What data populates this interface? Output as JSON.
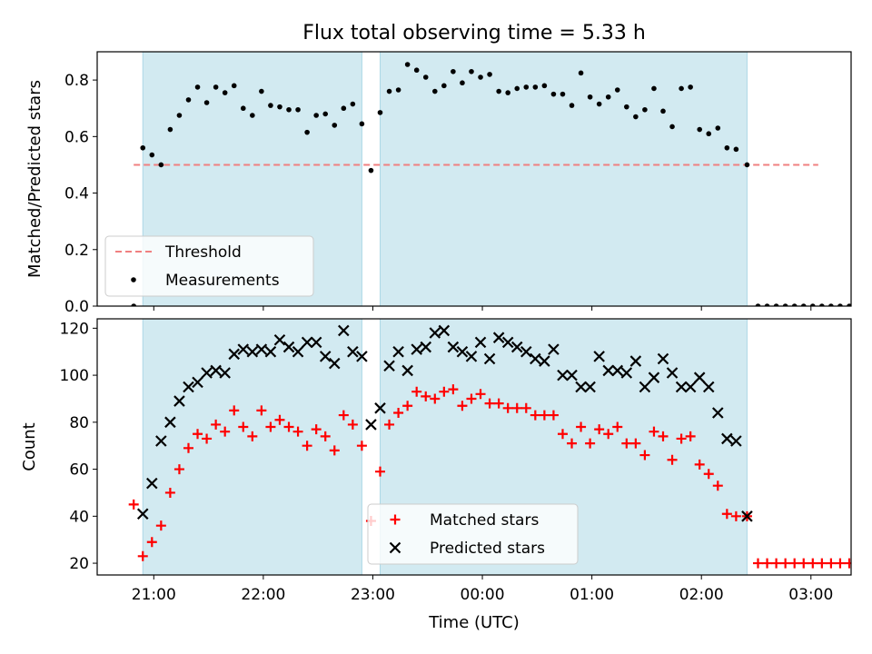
{
  "figure": {
    "title": "Flux total observing time = 5.33 h",
    "xlabel": "Time (UTC)"
  },
  "colors": {
    "band": "#add8e6",
    "threshold": "#f08080",
    "measurements": "#000000",
    "matched": "#ff0000",
    "predicted": "#000000"
  },
  "chart_data": [
    {
      "type": "scatter",
      "panel": "top",
      "ylabel": "Matched/Predicted stars",
      "xlim": [
        "20:29",
        "03:22"
      ],
      "ylim": [
        0,
        0.9
      ],
      "yticks": [
        0.0,
        0.2,
        0.4,
        0.6,
        0.8
      ],
      "ytick_labels": [
        "0.0",
        "0.2",
        "0.4",
        "0.6",
        "0.8"
      ],
      "xticks": [
        "21:00",
        "22:00",
        "23:00",
        "00:00",
        "01:00",
        "02:00",
        "03:00"
      ],
      "grid": false,
      "legend_position": "lower-left",
      "shaded_intervals": [
        [
          "20:54",
          "22:54"
        ],
        [
          "23:04",
          "02:25"
        ]
      ],
      "threshold": {
        "name": "Threshold",
        "value": 0.5,
        "x_range": [
          "20:49",
          "03:04"
        ],
        "style": "dashed"
      },
      "series": [
        {
          "name": "Measurements",
          "marker": "dot",
          "points": [
            [
              "20:49",
              0.0
            ],
            [
              "20:54",
              0.56
            ],
            [
              "20:59",
              0.535
            ],
            [
              "21:04",
              0.5
            ],
            [
              "21:09",
              0.625
            ],
            [
              "21:14",
              0.675
            ],
            [
              "21:19",
              0.73
            ],
            [
              "21:24",
              0.775
            ],
            [
              "21:29",
              0.72
            ],
            [
              "21:34",
              0.775
            ],
            [
              "21:39",
              0.755
            ],
            [
              "21:44",
              0.78
            ],
            [
              "21:49",
              0.7
            ],
            [
              "21:54",
              0.675
            ],
            [
              "21:59",
              0.76
            ],
            [
              "22:04",
              0.71
            ],
            [
              "22:09",
              0.705
            ],
            [
              "22:14",
              0.695
            ],
            [
              "22:19",
              0.695
            ],
            [
              "22:24",
              0.615
            ],
            [
              "22:29",
              0.675
            ],
            [
              "22:34",
              0.68
            ],
            [
              "22:39",
              0.64
            ],
            [
              "22:44",
              0.7
            ],
            [
              "22:49",
              0.715
            ],
            [
              "22:54",
              0.645
            ],
            [
              "22:59",
              0.48
            ],
            [
              "23:04",
              0.685
            ],
            [
              "23:09",
              0.76
            ],
            [
              "23:14",
              0.765
            ],
            [
              "23:19",
              0.855
            ],
            [
              "23:24",
              0.835
            ],
            [
              "23:29",
              0.81
            ],
            [
              "23:34",
              0.76
            ],
            [
              "23:39",
              0.78
            ],
            [
              "23:44",
              0.83
            ],
            [
              "23:49",
              0.79
            ],
            [
              "23:54",
              0.83
            ],
            [
              "23:59",
              0.81
            ],
            [
              "00:04",
              0.82
            ],
            [
              "00:09",
              0.76
            ],
            [
              "00:14",
              0.755
            ],
            [
              "00:19",
              0.77
            ],
            [
              "00:24",
              0.775
            ],
            [
              "00:29",
              0.775
            ],
            [
              "00:34",
              0.78
            ],
            [
              "00:39",
              0.75
            ],
            [
              "00:44",
              0.75
            ],
            [
              "00:49",
              0.71
            ],
            [
              "00:54",
              0.825
            ],
            [
              "00:59",
              0.74
            ],
            [
              "01:04",
              0.715
            ],
            [
              "01:09",
              0.74
            ],
            [
              "01:14",
              0.765
            ],
            [
              "01:19",
              0.705
            ],
            [
              "01:24",
              0.67
            ],
            [
              "01:29",
              0.695
            ],
            [
              "01:34",
              0.77
            ],
            [
              "01:39",
              0.69
            ],
            [
              "01:44",
              0.635
            ],
            [
              "01:49",
              0.77
            ],
            [
              "01:54",
              0.775
            ],
            [
              "01:59",
              0.625
            ],
            [
              "02:04",
              0.61
            ],
            [
              "02:09",
              0.63
            ],
            [
              "02:14",
              0.56
            ],
            [
              "02:19",
              0.555
            ],
            [
              "02:25",
              0.5
            ],
            [
              "02:31",
              0.0
            ],
            [
              "02:36",
              0.0
            ],
            [
              "02:41",
              0.0
            ],
            [
              "02:46",
              0.0
            ],
            [
              "02:51",
              0.0
            ],
            [
              "02:56",
              0.0
            ],
            [
              "03:01",
              0.0
            ],
            [
              "03:06",
              0.0
            ],
            [
              "03:11",
              0.0
            ],
            [
              "03:16",
              0.0
            ],
            [
              "03:21",
              0.0
            ]
          ]
        }
      ]
    },
    {
      "type": "scatter",
      "panel": "bottom",
      "ylabel": "Count",
      "xlim": [
        "20:29",
        "03:22"
      ],
      "ylim": [
        15,
        124
      ],
      "yticks": [
        20,
        40,
        60,
        80,
        100,
        120
      ],
      "ytick_labels": [
        "20",
        "40",
        "60",
        "80",
        "100",
        "120"
      ],
      "xticks": [
        "21:00",
        "22:00",
        "23:00",
        "00:00",
        "01:00",
        "02:00",
        "03:00"
      ],
      "xtick_labels": [
        "21:00",
        "22:00",
        "23:00",
        "00:00",
        "01:00",
        "02:00",
        "03:00"
      ],
      "grid": false,
      "legend_position": "lower-center",
      "shaded_intervals": [
        [
          "20:54",
          "22:54"
        ],
        [
          "23:04",
          "02:25"
        ]
      ],
      "series": [
        {
          "name": "Matched stars",
          "marker": "plus",
          "points": [
            [
              "20:49",
              45
            ],
            [
              "20:54",
              23
            ],
            [
              "20:59",
              29
            ],
            [
              "21:04",
              36
            ],
            [
              "21:09",
              50
            ],
            [
              "21:14",
              60
            ],
            [
              "21:19",
              69
            ],
            [
              "21:24",
              75
            ],
            [
              "21:29",
              73
            ],
            [
              "21:34",
              79
            ],
            [
              "21:39",
              76
            ],
            [
              "21:44",
              85
            ],
            [
              "21:49",
              78
            ],
            [
              "21:54",
              74
            ],
            [
              "21:59",
              85
            ],
            [
              "22:04",
              78
            ],
            [
              "22:09",
              81
            ],
            [
              "22:14",
              78
            ],
            [
              "22:19",
              76
            ],
            [
              "22:24",
              70
            ],
            [
              "22:29",
              77
            ],
            [
              "22:34",
              74
            ],
            [
              "22:39",
              68
            ],
            [
              "22:44",
              83
            ],
            [
              "22:49",
              79
            ],
            [
              "22:54",
              70
            ],
            [
              "22:59",
              38
            ],
            [
              "23:04",
              59
            ],
            [
              "23:09",
              79
            ],
            [
              "23:14",
              84
            ],
            [
              "23:19",
              87
            ],
            [
              "23:24",
              93
            ],
            [
              "23:29",
              91
            ],
            [
              "23:34",
              90
            ],
            [
              "23:39",
              93
            ],
            [
              "23:44",
              94
            ],
            [
              "23:49",
              87
            ],
            [
              "23:54",
              90
            ],
            [
              "23:59",
              92
            ],
            [
              "00:04",
              88
            ],
            [
              "00:09",
              88
            ],
            [
              "00:14",
              86
            ],
            [
              "00:19",
              86
            ],
            [
              "00:24",
              86
            ],
            [
              "00:29",
              83
            ],
            [
              "00:34",
              83
            ],
            [
              "00:39",
              83
            ],
            [
              "00:44",
              75
            ],
            [
              "00:49",
              71
            ],
            [
              "00:54",
              78
            ],
            [
              "00:59",
              71
            ],
            [
              "01:04",
              77
            ],
            [
              "01:09",
              75
            ],
            [
              "01:14",
              78
            ],
            [
              "01:19",
              71
            ],
            [
              "01:24",
              71
            ],
            [
              "01:29",
              66
            ],
            [
              "01:34",
              76
            ],
            [
              "01:39",
              74
            ],
            [
              "01:44",
              64
            ],
            [
              "01:49",
              73
            ],
            [
              "01:54",
              74
            ],
            [
              "01:59",
              62
            ],
            [
              "02:04",
              58
            ],
            [
              "02:09",
              53
            ],
            [
              "02:14",
              41
            ],
            [
              "02:19",
              40
            ],
            [
              "02:25",
              40
            ],
            [
              "02:31",
              20
            ],
            [
              "02:36",
              20
            ],
            [
              "02:41",
              20
            ],
            [
              "02:46",
              20
            ],
            [
              "02:51",
              20
            ],
            [
              "02:56",
              20
            ],
            [
              "03:01",
              20
            ],
            [
              "03:06",
              20
            ],
            [
              "03:11",
              20
            ],
            [
              "03:16",
              20
            ],
            [
              "03:21",
              20
            ]
          ]
        },
        {
          "name": "Predicted stars",
          "marker": "x",
          "points": [
            [
              "20:54",
              41
            ],
            [
              "20:59",
              54
            ],
            [
              "21:04",
              72
            ],
            [
              "21:09",
              80
            ],
            [
              "21:14",
              89
            ],
            [
              "21:19",
              95
            ],
            [
              "21:24",
              97
            ],
            [
              "21:29",
              101
            ],
            [
              "21:34",
              102
            ],
            [
              "21:39",
              101
            ],
            [
              "21:44",
              109
            ],
            [
              "21:49",
              111
            ],
            [
              "21:54",
              110
            ],
            [
              "21:59",
              111
            ],
            [
              "22:04",
              110
            ],
            [
              "22:09",
              115
            ],
            [
              "22:14",
              112
            ],
            [
              "22:19",
              110
            ],
            [
              "22:24",
              114
            ],
            [
              "22:29",
              114
            ],
            [
              "22:34",
              108
            ],
            [
              "22:39",
              105
            ],
            [
              "22:44",
              119
            ],
            [
              "22:49",
              110
            ],
            [
              "22:54",
              108
            ],
            [
              "22:59",
              79
            ],
            [
              "23:04",
              86
            ],
            [
              "23:09",
              104
            ],
            [
              "23:14",
              110
            ],
            [
              "23:19",
              102
            ],
            [
              "23:24",
              111
            ],
            [
              "23:29",
              112
            ],
            [
              "23:34",
              118
            ],
            [
              "23:39",
              119
            ],
            [
              "23:44",
              112
            ],
            [
              "23:49",
              110
            ],
            [
              "23:54",
              108
            ],
            [
              "23:59",
              114
            ],
            [
              "00:04",
              107
            ],
            [
              "00:09",
              116
            ],
            [
              "00:14",
              114
            ],
            [
              "00:19",
              112
            ],
            [
              "00:24",
              110
            ],
            [
              "00:29",
              107
            ],
            [
              "00:34",
              106
            ],
            [
              "00:39",
              111
            ],
            [
              "00:44",
              100
            ],
            [
              "00:49",
              100
            ],
            [
              "00:54",
              95
            ],
            [
              "00:59",
              95
            ],
            [
              "01:04",
              108
            ],
            [
              "01:09",
              102
            ],
            [
              "01:14",
              102
            ],
            [
              "01:19",
              101
            ],
            [
              "01:24",
              106
            ],
            [
              "01:29",
              95
            ],
            [
              "01:34",
              99
            ],
            [
              "01:39",
              107
            ],
            [
              "01:44",
              101
            ],
            [
              "01:49",
              95
            ],
            [
              "01:54",
              95
            ],
            [
              "01:59",
              99
            ],
            [
              "02:04",
              95
            ],
            [
              "02:09",
              84
            ],
            [
              "02:14",
              73
            ],
            [
              "02:19",
              72
            ],
            [
              "02:25",
              40
            ]
          ]
        }
      ]
    }
  ]
}
